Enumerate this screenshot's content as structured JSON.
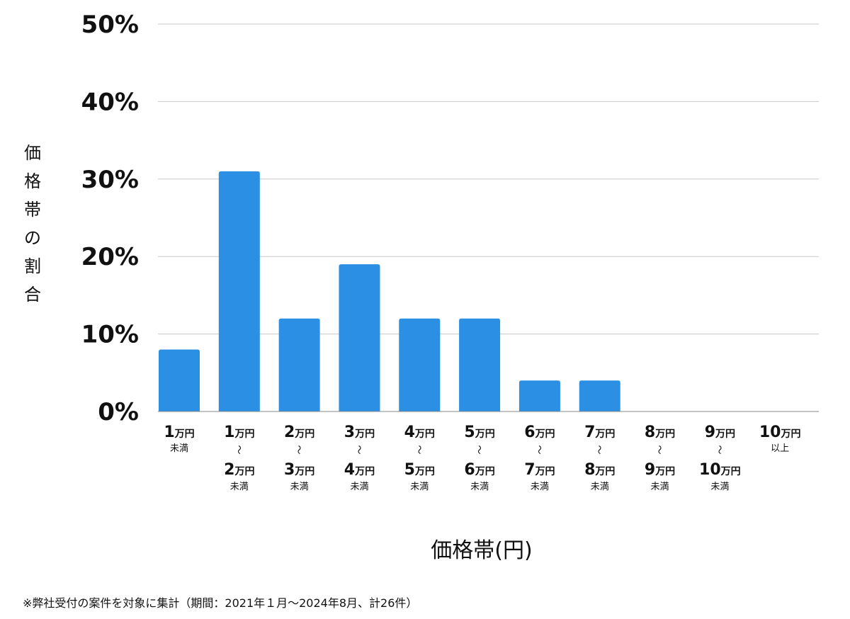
{
  "chart_data": {
    "type": "bar",
    "ylabel": "価格帯の割合",
    "xlabel": "価格帯(円)",
    "ylim": [
      0,
      50
    ],
    "yticks": [
      "0%",
      "10%",
      "20%",
      "30%",
      "40%",
      "50%"
    ],
    "ytick_values": [
      0,
      10,
      20,
      30,
      40,
      50
    ],
    "grid": true,
    "bar_color": "#2b8fe3",
    "categories": [
      {
        "from": "1",
        "from_unit": "万円",
        "to": "",
        "to_unit": "",
        "note": "未満"
      },
      {
        "from": "1",
        "from_unit": "万円",
        "to": "2",
        "to_unit": "万円",
        "note": "未満"
      },
      {
        "from": "2",
        "from_unit": "万円",
        "to": "3",
        "to_unit": "万円",
        "note": "未満"
      },
      {
        "from": "3",
        "from_unit": "万円",
        "to": "4",
        "to_unit": "万円",
        "note": "未満"
      },
      {
        "from": "4",
        "from_unit": "万円",
        "to": "5",
        "to_unit": "万円",
        "note": "未満"
      },
      {
        "from": "5",
        "from_unit": "万円",
        "to": "6",
        "to_unit": "万円",
        "note": "未満"
      },
      {
        "from": "6",
        "from_unit": "万円",
        "to": "7",
        "to_unit": "万円",
        "note": "未満"
      },
      {
        "from": "7",
        "from_unit": "万円",
        "to": "8",
        "to_unit": "万円",
        "note": "未満"
      },
      {
        "from": "8",
        "from_unit": "万円",
        "to": "9",
        "to_unit": "万円",
        "note": "未満"
      },
      {
        "from": "9",
        "from_unit": "万円",
        "to": "10",
        "to_unit": "万円",
        "note": "未満"
      },
      {
        "from": "10",
        "from_unit": "万円",
        "to": "",
        "to_unit": "",
        "note": "以上"
      }
    ],
    "range_mark": "〜",
    "values": [
      8,
      31,
      12,
      19,
      12,
      12,
      4,
      4,
      0,
      0,
      0
    ]
  },
  "footnote": "※弊社受付の案件を対象に集計（期間：2021年１月〜2024年8月、計26件）"
}
